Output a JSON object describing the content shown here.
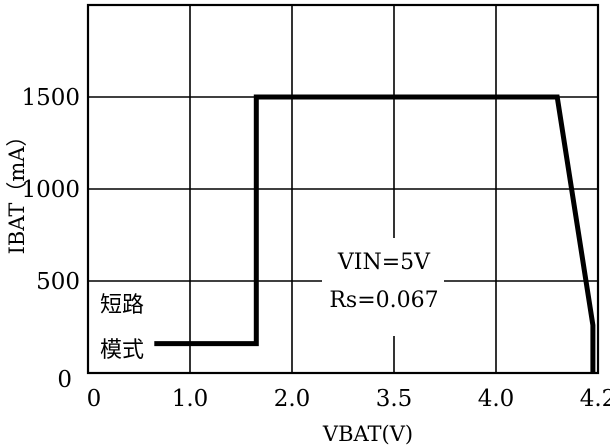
{
  "chart_data": {
    "type": "line",
    "title": "",
    "xlabel": "VBAT(V)",
    "ylabel": "IBAT（mA）",
    "x_tick_labels": [
      "0",
      "1.0",
      "2.0",
      "3.5",
      "4.0",
      "4.2"
    ],
    "y_tick_labels": [
      "0",
      "500",
      "1000",
      "1500"
    ],
    "y_tick_values": [
      0,
      500,
      1000,
      1500
    ],
    "ylim": [
      0,
      2000
    ],
    "grid": true,
    "series": [
      {
        "points": [
          {
            "x_pos": 0.65,
            "y": 160
          },
          {
            "x_pos": 1.65,
            "y": 160
          },
          {
            "x_pos": 1.65,
            "y": 1500
          },
          {
            "x_pos": 4.6,
            "y": 1500
          },
          {
            "x_pos": 4.95,
            "y": 260
          },
          {
            "x_pos": 4.95,
            "y": 0
          }
        ]
      }
    ],
    "annotations": {
      "short_circuit_line1": "短路",
      "short_circuit_line2": "模式",
      "vin": "VIN=5V",
      "rs": "Rs=0.067"
    }
  }
}
